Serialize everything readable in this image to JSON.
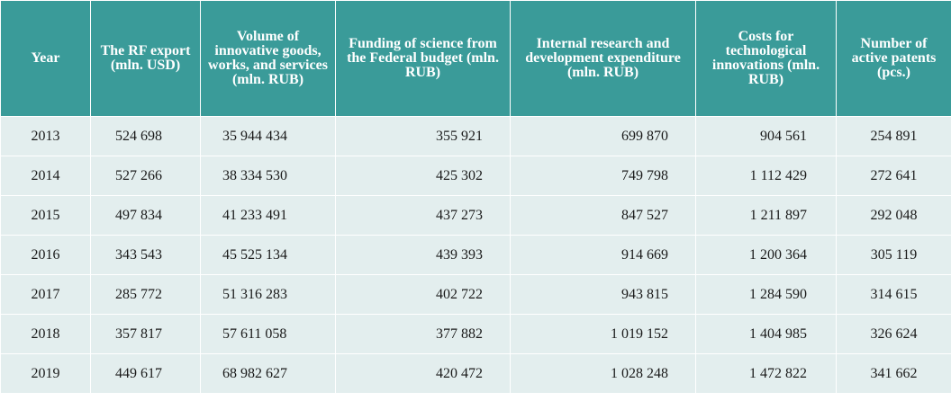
{
  "table": {
    "headers": [
      "Year",
      "The RF export (mln. USD)",
      "Volume of innovative goods, works, and services (mln. RUB)",
      "Funding of science from the Federal budget (mln. RUB)",
      "Internal research and development expenditure (mln. RUB)",
      "Costs for technological innovations (mln. RUB)",
      "Number of active patents (pcs.)"
    ],
    "rows": [
      [
        "2013",
        "524 698",
        "35 944 434",
        "355 921",
        "699 870",
        "904 561",
        "254 891"
      ],
      [
        "2014",
        "527 266",
        "38 334 530",
        "425 302",
        "749 798",
        "1 112 429",
        "272 641"
      ],
      [
        "2015",
        "497 834",
        "41 233 491",
        "437 273",
        "847 527",
        "1 211 897",
        "292 048"
      ],
      [
        "2016",
        "343 543",
        "45 525 134",
        "439 393",
        "914 669",
        "1 200 364",
        "305 119"
      ],
      [
        "2017",
        "285 772",
        "51 316 283",
        "402 722",
        "943 815",
        "1 284 590",
        "314 615"
      ],
      [
        "2018",
        "357 817",
        "57 611 058",
        "377 882",
        "1 019 152",
        "1 404 985",
        "326 624"
      ],
      [
        "2019",
        "449 617",
        "68 982 627",
        "420 472",
        "1 028 248",
        "1 472 822",
        "341 662"
      ]
    ]
  },
  "colors": {
    "header_bg": "#3a9b99",
    "header_text": "#ffffff",
    "body_bg": "#e3eeee",
    "body_text": "#1a1a1a"
  }
}
